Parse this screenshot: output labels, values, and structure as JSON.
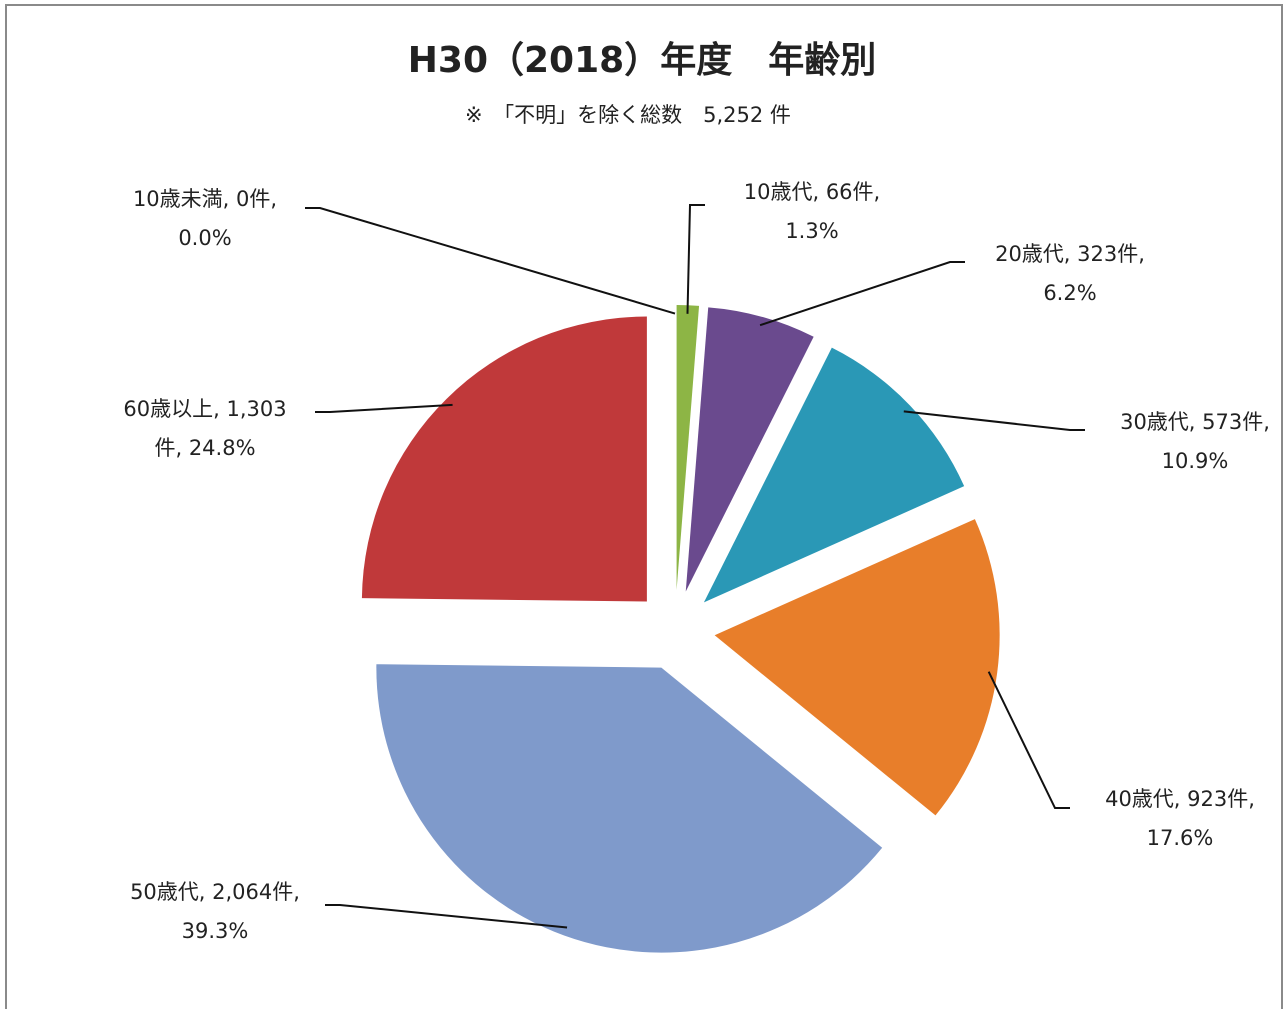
{
  "chart_data": {
    "type": "pie",
    "title": "H30（2018）年度　年齢別",
    "subtitle": "※　「不明」を除く総数　5,252 件",
    "categories": [
      "10歳未満",
      "10歳代",
      "20歳代",
      "30歳代",
      "40歳代",
      "50歳代",
      "60歳以上"
    ],
    "values": [
      0,
      66,
      323,
      573,
      923,
      2064,
      1303
    ],
    "value_labels": [
      [
        "10歳未満, 0件,",
        "0.0%"
      ],
      [
        "10歳代, 66件,",
        "1.3%"
      ],
      [
        "20歳代, 323件,",
        "6.2%"
      ],
      [
        "30歳代, 573件,",
        "10.9%"
      ],
      [
        "40歳代, 923件,",
        "17.6%"
      ],
      [
        "50歳代, 2,064件,",
        "39.3%"
      ],
      [
        "60歳以上, 1,303",
        "件, 24.8%"
      ]
    ],
    "colors": [
      "#c0393a",
      "#8db545",
      "#6a4a8e",
      "#2a98b6",
      "#e87e2a",
      "#7f9acb"
    ],
    "exploded": true
  }
}
